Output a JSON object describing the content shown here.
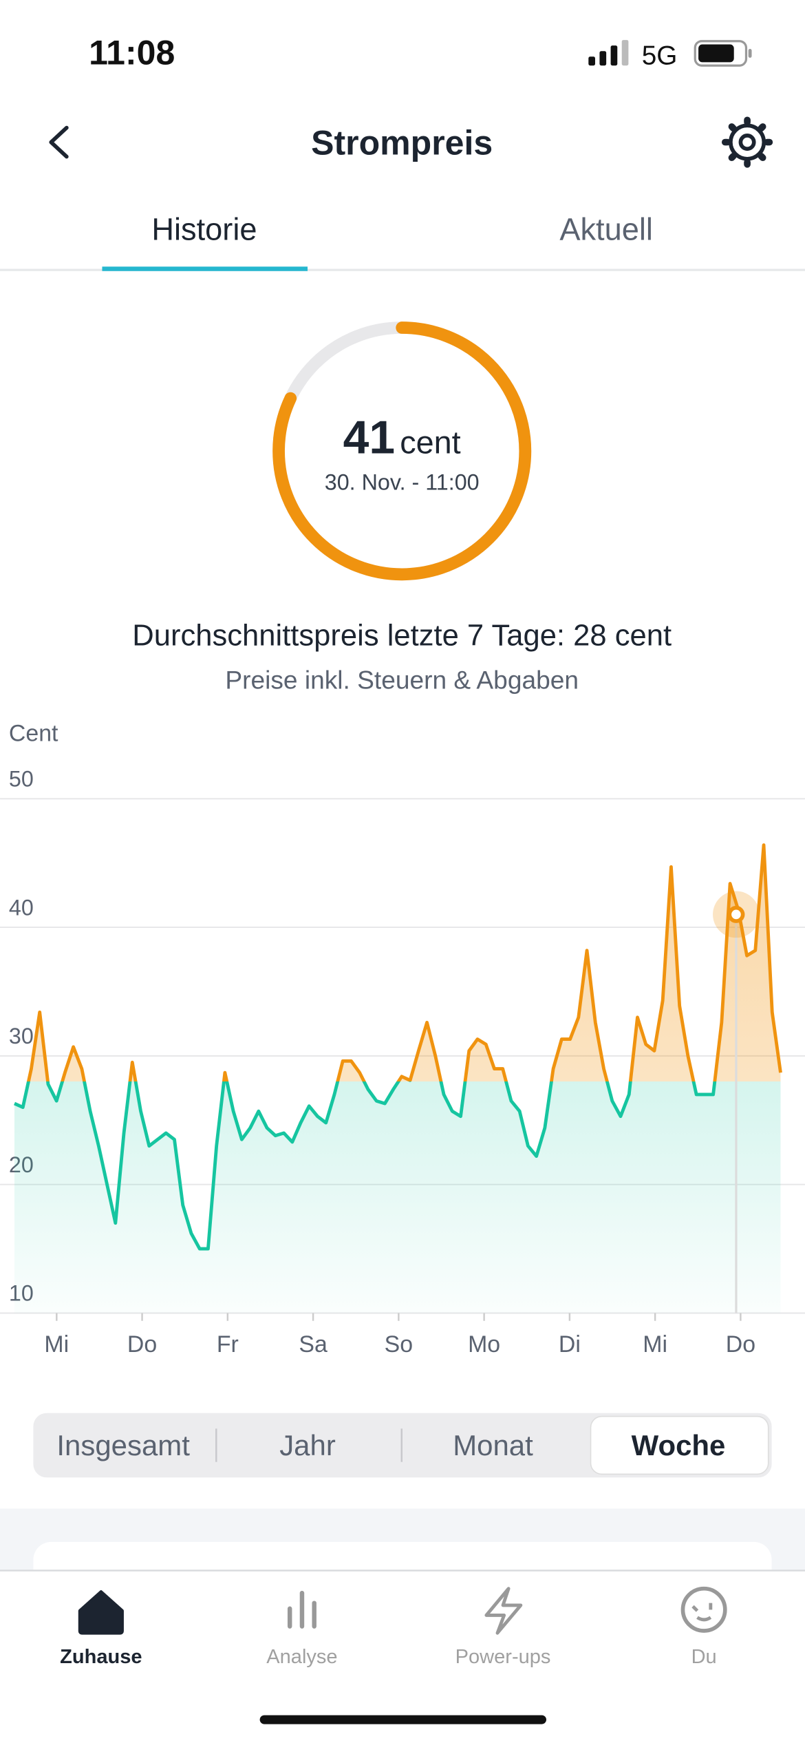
{
  "status_bar": {
    "time": "11:08",
    "network": "5G"
  },
  "header": {
    "title": "Strompreis"
  },
  "tabs": {
    "items": [
      "Historie",
      "Aktuell"
    ],
    "selected": 0
  },
  "current": {
    "value": 41,
    "unit": "cent",
    "timestamp": "30. Nov. - 11:00"
  },
  "average": {
    "label": "Durchschnittspreis letzte 7 Tage:",
    "value": 28,
    "unit": "cent"
  },
  "note": "Preise inkl. Steuern & Abgaben",
  "chart_data": {
    "type": "line",
    "y_label": "Cent",
    "xtick_labels": [
      "Mi",
      "Do",
      "Fr",
      "Sa",
      "So",
      "Mo",
      "Di",
      "Mi",
      "Do"
    ],
    "values": [
      26.3,
      26,
      29,
      33.4,
      27.8,
      26.5,
      28.7,
      30.7,
      29,
      25.7,
      23,
      20,
      17,
      24,
      29.5,
      25.7,
      23,
      23.5,
      24,
      23.5,
      18.4,
      16.2,
      15,
      15,
      23,
      28.7,
      25.7,
      23.5,
      24.4,
      25.7,
      24.4,
      23.8,
      24,
      23.3,
      24.8,
      26.1,
      25.3,
      24.8,
      27,
      29.6,
      29.6,
      28.7,
      27.4,
      26.5,
      26.3,
      27.4,
      28.4,
      28.1,
      30.4,
      32.6,
      30,
      27,
      25.7,
      25.3,
      30.4,
      31.3,
      30.9,
      29,
      29,
      26.5,
      25.7,
      23,
      22.2,
      24.4,
      29,
      31.3,
      31.3,
      33,
      38.2,
      32.6,
      29,
      26.5,
      25.3,
      27,
      33,
      30.9,
      30.4,
      34.3,
      44.7,
      33.9,
      30,
      27,
      27,
      27,
      32.6,
      43.4,
      41.3,
      37.8,
      38.2,
      46.4,
      33.4,
      28.7
    ],
    "ylim": [
      10,
      50
    ],
    "yticks": [
      10,
      20,
      30,
      40,
      50
    ],
    "grid": true,
    "colors": {
      "above": "#f0930f",
      "below": "#16c5a0"
    }
  },
  "period_selector": {
    "options": [
      "Insgesamt",
      "Jahr",
      "Monat",
      "Woche"
    ],
    "selected": 3
  },
  "nav": {
    "items": [
      "Zuhause",
      "Analyse",
      "Power-ups",
      "Du"
    ],
    "selected": 0
  }
}
